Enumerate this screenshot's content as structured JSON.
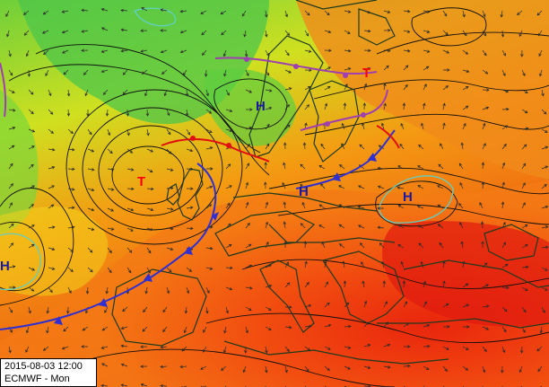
{
  "map": {
    "valid_time": "2015-08-03 12:00",
    "model_label": "ECMWF - Mon",
    "pressure_centers": [
      {
        "id": "low-iceland",
        "label": "T",
        "color": "#ff0000"
      },
      {
        "id": "high-norway-sea",
        "label": "H",
        "color": "#1a1aa0"
      },
      {
        "id": "high-baltic",
        "label": "H",
        "color": "#1a1aa0"
      },
      {
        "id": "high-russia",
        "label": "H",
        "color": "#1a1aa0"
      },
      {
        "id": "high-atlantic-west",
        "label": "H",
        "color": "#1a1aa0"
      },
      {
        "id": "low-barents",
        "label": "T",
        "color": "#ff0000"
      }
    ],
    "colors": {
      "cold_front": "#3030d0",
      "warm_front": "#e01010",
      "occlusion": "#a040b0",
      "isobar": "#101010",
      "coastline": "#1e3a1e",
      "high_contour": "#60d0c0"
    }
  }
}
